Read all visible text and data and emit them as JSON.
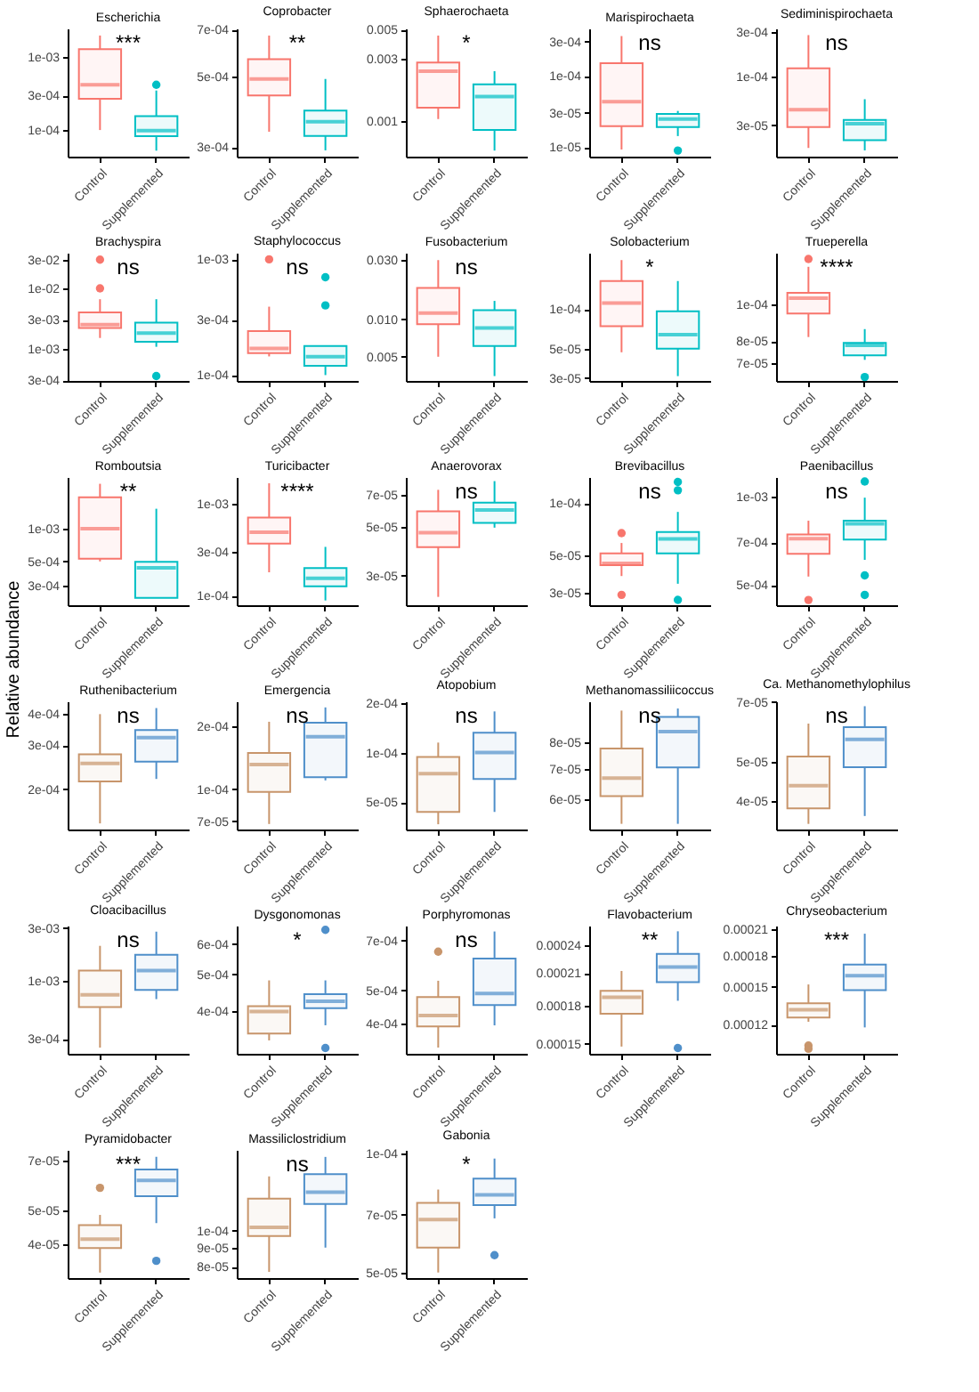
{
  "chart_data": [
    {
      "type": "box",
      "title": "Escherichia",
      "categories": [
        "Control",
        "Supplemented"
      ],
      "colors": [
        "#f8766d",
        "#00bfc4"
      ],
      "log": true,
      "ylim": [
        4.3e-05,
        0.0025
      ],
      "yticks": [
        {
          "value": 0.0001,
          "label": "1e-04"
        },
        {
          "value": 0.0003,
          "label": "3e-04"
        },
        {
          "value": 0.001,
          "label": "1e-03"
        }
      ],
      "annotations": [
        "***"
      ],
      "boxes": [
        {
          "low": 0.0001,
          "q1": 0.00027,
          "median": 0.00042,
          "q3": 0.0013,
          "high": 0.002
        },
        {
          "low": 5.2e-05,
          "q1": 8.2e-05,
          "median": 9.8e-05,
          "q3": 0.000155,
          "high": 0.00035,
          "outliers": [
            0.00042
          ]
        }
      ]
    },
    {
      "type": "box",
      "title": "Coprobacter",
      "categories": [
        "Control",
        "Supplemented"
      ],
      "colors": [
        "#f8766d",
        "#00bfc4"
      ],
      "log": true,
      "ylim": [
        0.00028,
        0.000705
      ],
      "yticks": [
        {
          "value": 0.0003,
          "label": "3e-04"
        },
        {
          "value": 0.0005,
          "label": "5e-04"
        },
        {
          "value": 0.0007,
          "label": "7e-04"
        }
      ],
      "annotations": [
        "**"
      ],
      "boxes": [
        {
          "low": 0.000335,
          "q1": 0.000435,
          "median": 0.00049,
          "q3": 0.000565,
          "high": 0.00067
        },
        {
          "low": 0.000293,
          "q1": 0.000325,
          "median": 0.00036,
          "q3": 0.00039,
          "high": 0.00049
        }
      ]
    },
    {
      "type": "box",
      "title": "Sphaerochaeta",
      "categories": [
        "Control",
        "Supplemented"
      ],
      "colors": [
        "#f8766d",
        "#00bfc4"
      ],
      "log": true,
      "ylim": [
        0.00053,
        0.0051
      ],
      "yticks": [
        0.001,
        0.003,
        0.005
      ],
      "annotations": [
        "*"
      ],
      "boxes": [
        {
          "low": 0.00103,
          "q1": 0.00126,
          "median": 0.0024,
          "q3": 0.0028,
          "high": 0.0045
        },
        {
          "low": 0.00059,
          "q1": 0.00085,
          "median": 0.00153,
          "q3": 0.0019,
          "high": 0.0024
        }
      ]
    },
    {
      "type": "box",
      "title": "Marispirochaeta",
      "categories": [
        "Control",
        "Supplemented"
      ],
      "colors": [
        "#f8766d",
        "#00bfc4"
      ],
      "log": true,
      "ylim": [
        7.3e-06,
        0.00046
      ],
      "yticks": [
        {
          "value": 1e-05,
          "label": "1e-05"
        },
        {
          "value": 3e-05,
          "label": "3e-05"
        },
        {
          "value": 0.0001,
          "label": "1e-04"
        },
        {
          "value": 0.0003,
          "label": "3e-04"
        }
      ],
      "annotations": [
        "ns"
      ],
      "boxes": [
        {
          "low": 9.2e-06,
          "q1": 1.95e-05,
          "median": 4.3e-05,
          "q3": 0.00015,
          "high": 0.00036
        },
        {
          "low": 1.42e-05,
          "q1": 1.9e-05,
          "median": 2.46e-05,
          "q3": 2.9e-05,
          "high": 3.2e-05,
          "outliers": [
            8.9e-06
          ]
        }
      ]
    },
    {
      "type": "box",
      "title": "Sediminispirochaeta",
      "categories": [
        "Control",
        "Supplemented"
      ],
      "colors": [
        "#f8766d",
        "#00bfc4"
      ],
      "log": true,
      "ylim": [
        1.37e-05,
        0.00033
      ],
      "yticks": [
        {
          "value": 3e-05,
          "label": "3e-05"
        },
        {
          "value": 0.0001,
          "label": "1e-04"
        },
        {
          "value": 0.0003,
          "label": "3e-04"
        }
      ],
      "annotations": [
        "ns"
      ],
      "boxes": [
        {
          "low": 1.7e-05,
          "q1": 2.86e-05,
          "median": 4.4e-05,
          "q3": 0.000123,
          "high": 0.00028
        },
        {
          "low": 1.6e-05,
          "q1": 2.06e-05,
          "median": 3.1e-05,
          "q3": 3.4e-05,
          "high": 5.7e-05
        }
      ]
    },
    {
      "type": "box",
      "title": "Brachyspira",
      "categories": [
        "Control",
        "Supplemented"
      ],
      "colors": [
        "#f8766d",
        "#00bfc4"
      ],
      "log": true,
      "ylim": [
        0.00029,
        0.039
      ],
      "yticks": [
        {
          "value": 0.0003,
          "label": "3e-04"
        },
        {
          "value": 0.001,
          "label": "1e-03"
        },
        {
          "value": 0.003,
          "label": "3e-03"
        },
        {
          "value": 0.01,
          "label": "1e-02"
        },
        {
          "value": 0.03,
          "label": "3e-02"
        }
      ],
      "annotations": [
        "ns"
      ],
      "boxes": [
        {
          "low": 0.0015,
          "q1": 0.0022,
          "median": 0.0025,
          "q3": 0.004,
          "high": 0.0066,
          "outliers": [
            0.01,
            0.03
          ]
        },
        {
          "low": 0.00107,
          "q1": 0.0013,
          "median": 0.0018,
          "q3": 0.0027,
          "high": 0.0066,
          "outliers": [
            0.00035
          ]
        }
      ]
    },
    {
      "type": "box",
      "title": "Staphylococcus",
      "categories": [
        "Control",
        "Supplemented"
      ],
      "colors": [
        "#f8766d",
        "#00bfc4"
      ],
      "log": true,
      "ylim": [
        8.9e-05,
        0.00114
      ],
      "yticks": [
        {
          "value": 0.0001,
          "label": "1e-04"
        },
        {
          "value": 0.0003,
          "label": "3e-04"
        },
        {
          "value": 0.001,
          "label": "1e-03"
        }
      ],
      "annotations": [
        "ns"
      ],
      "boxes": [
        {
          "low": 0.000145,
          "q1": 0.000155,
          "median": 0.00017,
          "q3": 0.00024,
          "high": 0.00039,
          "outliers": [
            0.001
          ]
        },
        {
          "low": 0.0001,
          "q1": 0.00012,
          "median": 0.000144,
          "q3": 0.000178,
          "high": 0.00018,
          "outliers": [
            0.0004,
            0.0007
          ]
        }
      ]
    },
    {
      "type": "box",
      "title": "Fusobacterium",
      "categories": [
        "Control",
        "Supplemented"
      ],
      "colors": [
        "#f8766d",
        "#00bfc4"
      ],
      "log": true,
      "ylim": [
        0.0032,
        0.034
      ],
      "yticks": [
        0.005,
        {
          "value": 0.01,
          "label": "0.010"
        },
        {
          "value": 0.03,
          "label": "0.030"
        }
      ],
      "annotations": [
        "ns"
      ],
      "boxes": [
        {
          "low": 0.005,
          "q1": 0.0091,
          "median": 0.0112,
          "q3": 0.0178,
          "high": 0.0297
        },
        {
          "low": 0.0035,
          "q1": 0.0061,
          "median": 0.0085,
          "q3": 0.0118,
          "high": 0.014
        }
      ]
    },
    {
      "type": "box",
      "title": "Solobacterium",
      "categories": [
        "Control",
        "Supplemented"
      ],
      "colors": [
        "#f8766d",
        "#00bfc4"
      ],
      "log": true,
      "ylim": [
        2.85e-05,
        0.000267
      ],
      "yticks": [
        {
          "value": 3e-05,
          "label": "3e-05"
        },
        {
          "value": 5e-05,
          "label": "5e-05"
        },
        {
          "value": 0.0001,
          "label": "1e-04"
        }
      ],
      "annotations": [
        "*"
      ],
      "boxes": [
        {
          "low": 4.7e-05,
          "q1": 7.4e-05,
          "median": 0.000111,
          "q3": 0.000163,
          "high": 0.000235
        },
        {
          "low": 3.1e-05,
          "q1": 5e-05,
          "median": 6.4e-05,
          "q3": 9.6e-05,
          "high": 0.000163
        }
      ]
    },
    {
      "type": "box",
      "title": "Trueperella",
      "categories": [
        "Control",
        "Supplemented"
      ],
      "colors": [
        "#f8766d",
        "#00bfc4"
      ],
      "log": true,
      "ylim": [
        6.3e-05,
        0.000136
      ],
      "yticks": [
        {
          "value": 7e-05,
          "label": "7e-05"
        },
        {
          "value": 8e-05,
          "label": "8e-05"
        },
        {
          "value": 0.0001,
          "label": "1e-04"
        }
      ],
      "annotations": [
        "****"
      ],
      "boxes": [
        {
          "low": 8.2e-05,
          "q1": 9.45e-05,
          "median": 0.0001035,
          "q3": 0.000107,
          "high": 0.000125,
          "outliers": [
            0.000131
          ]
        },
        {
          "low": 7.15e-05,
          "q1": 7.35e-05,
          "median": 7.8e-05,
          "q3": 7.92e-05,
          "high": 8.6e-05,
          "outliers": [
            6.45e-05
          ]
        }
      ]
    },
    {
      "type": "box",
      "title": "Romboutsia",
      "ylabel": "Relative abundance",
      "categories": [
        "Control",
        "Supplemented"
      ],
      "colors": [
        "#f8766d",
        "#00bfc4"
      ],
      "log": true,
      "ylim": [
        0.000197,
        0.003
      ],
      "yticks": [
        {
          "value": 0.0003,
          "label": "3e-04"
        },
        {
          "value": 0.0005,
          "label": "5e-04"
        },
        {
          "value": 0.001,
          "label": "1e-03"
        }
      ],
      "annotations": [
        "**"
      ],
      "boxes": [
        {
          "low": 0.0005,
          "q1": 0.00053,
          "median": 0.001,
          "q3": 0.00195,
          "high": 0.0026
        },
        {
          "low": 0.00023,
          "q1": 0.00023,
          "median": 0.000435,
          "q3": 0.000495,
          "high": 0.00153
        }
      ]
    },
    {
      "type": "box",
      "title": "Turicibacter",
      "categories": [
        "Control",
        "Supplemented"
      ],
      "colors": [
        "#f8766d",
        "#00bfc4"
      ],
      "log": true,
      "ylim": [
        7.9e-05,
        0.00195
      ],
      "yticks": [
        {
          "value": 0.0001,
          "label": "1e-04"
        },
        {
          "value": 0.0003,
          "label": "3e-04"
        },
        {
          "value": 0.001,
          "label": "1e-03"
        }
      ],
      "annotations": [
        "****"
      ],
      "boxes": [
        {
          "low": 0.00018,
          "q1": 0.00037,
          "median": 0.00049,
          "q3": 0.00071,
          "high": 0.00167
        },
        {
          "low": 8.9e-05,
          "q1": 0.000127,
          "median": 0.000155,
          "q3": 0.0002,
          "high": 0.00034
        }
      ]
    },
    {
      "type": "box",
      "title": "Anaerovorax",
      "categories": [
        "Control",
        "Supplemented"
      ],
      "colors": [
        "#f8766d",
        "#00bfc4"
      ],
      "log": true,
      "ylim": [
        2.2e-05,
        8.4e-05
      ],
      "yticks": [
        {
          "value": 3e-05,
          "label": "3e-05"
        },
        {
          "value": 5e-05,
          "label": "5e-05"
        },
        {
          "value": 7e-05,
          "label": "7e-05"
        }
      ],
      "annotations": [
        "ns"
      ],
      "boxes": [
        {
          "low": 2.4e-05,
          "q1": 4.04e-05,
          "median": 4.7e-05,
          "q3": 5.87e-05,
          "high": 7.35e-05
        },
        {
          "low": 4.95e-05,
          "q1": 5.2e-05,
          "median": 5.96e-05,
          "q3": 6.43e-05,
          "high": 8.05e-05
        }
      ]
    },
    {
      "type": "box",
      "title": "Brevibacillus",
      "categories": [
        "Control",
        "Supplemented"
      ],
      "colors": [
        "#f8766d",
        "#00bfc4"
      ],
      "log": true,
      "ylim": [
        2.55e-05,
        0.000142
      ],
      "yticks": [
        {
          "value": 3e-05,
          "label": "3e-05"
        },
        {
          "value": 5e-05,
          "label": "5e-05"
        },
        {
          "value": 0.0001,
          "label": "1e-04"
        }
      ],
      "annotations": [
        "ns"
      ],
      "boxes": [
        {
          "low": 3.77e-05,
          "q1": 4.36e-05,
          "median": 4.46e-05,
          "q3": 5.1e-05,
          "high": 5.87e-05,
          "outliers": [
            6.7e-05,
            2.93e-05
          ]
        },
        {
          "low": 3.4e-05,
          "q1": 5.1e-05,
          "median": 6.2e-05,
          "q3": 6.8e-05,
          "high": 8.9e-05,
          "outliers": [
            0.000119,
            0.000133,
            2.74e-05
          ]
        }
      ]
    },
    {
      "type": "box",
      "title": "Paenibacillus",
      "categories": [
        "Control",
        "Supplemented"
      ],
      "colors": [
        "#f8766d",
        "#00bfc4"
      ],
      "log": true,
      "ylim": [
        0.000427,
        0.00117
      ],
      "yticks": [
        {
          "value": 0.0005,
          "label": "5e-04"
        },
        {
          "value": 0.0007,
          "label": "7e-04"
        },
        {
          "value": 0.001,
          "label": "1e-03"
        }
      ],
      "annotations": [
        "ns"
      ],
      "boxes": [
        {
          "low": 0.000535,
          "q1": 0.00064,
          "median": 0.00072,
          "q3": 0.000745,
          "high": 0.00083,
          "outliers": [
            0.000445
          ]
        },
        {
          "low": 0.00061,
          "q1": 0.000715,
          "median": 0.00081,
          "q3": 0.00083,
          "high": 0.000995,
          "outliers": [
            0.00113,
            0.00054,
            0.000463
          ]
        }
      ]
    },
    {
      "type": "box",
      "title": "Ruthenibacterium",
      "categories": [
        "Control",
        "Supplemented"
      ],
      "colors": [
        "#c8956b",
        "#4f8fca"
      ],
      "log": true,
      "ylim": [
        0.000138,
        0.00045
      ],
      "yticks": [
        {
          "value": 0.0002,
          "label": "2e-04"
        },
        {
          "value": 0.0003,
          "label": "3e-04"
        },
        {
          "value": 0.0004,
          "label": "4e-04"
        }
      ],
      "annotations": [
        "ns"
      ],
      "boxes": [
        {
          "low": 0.000146,
          "q1": 0.000215,
          "median": 0.000254,
          "q3": 0.000276,
          "high": 0.0004
        },
        {
          "low": 0.00022,
          "q1": 0.000258,
          "median": 0.000322,
          "q3": 0.000345,
          "high": 0.000423
        }
      ]
    },
    {
      "type": "box",
      "title": "Emergencia",
      "categories": [
        "Control",
        "Supplemented"
      ],
      "colors": [
        "#c8956b",
        "#4f8fca"
      ],
      "log": true,
      "ylim": [
        6.4e-05,
        0.000263
      ],
      "yticks": [
        {
          "value": 7e-05,
          "label": "7e-05"
        },
        {
          "value": 0.0001,
          "label": "1e-04"
        },
        {
          "value": 0.0002,
          "label": "2e-04"
        }
      ],
      "annotations": [
        "ns"
      ],
      "boxes": [
        {
          "low": 6.8e-05,
          "q1": 9.7e-05,
          "median": 0.000131,
          "q3": 0.000149,
          "high": 0.00021
        },
        {
          "low": 0.00011,
          "q1": 0.000114,
          "median": 0.000178,
          "q3": 0.000208,
          "high": 0.000246
        }
      ]
    },
    {
      "type": "box",
      "title": "Atopobium",
      "categories": [
        "Control",
        "Supplemented"
      ],
      "colors": [
        "#c8956b",
        "#4f8fca"
      ],
      "log": true,
      "ylim": [
        3.4e-05,
        0.000205
      ],
      "yticks": [
        {
          "value": 5e-05,
          "label": "5e-05"
        },
        {
          "value": 0.0001,
          "label": "1e-04"
        },
        {
          "value": 0.0002,
          "label": "2e-04"
        }
      ],
      "annotations": [
        "ns"
      ],
      "boxes": [
        {
          "low": 3.66e-05,
          "q1": 4.35e-05,
          "median": 7.45e-05,
          "q3": 9.4e-05,
          "high": 0.000115
        },
        {
          "low": 4.35e-05,
          "q1": 6.9e-05,
          "median": 0.0001,
          "q3": 0.000132,
          "high": 0.000178
        }
      ]
    },
    {
      "type": "box",
      "title": "Methanomassiliicoccus",
      "categories": [
        "Control",
        "Supplemented"
      ],
      "colors": [
        "#c8956b",
        "#4f8fca"
      ],
      "log": true,
      "ylim": [
        5.15e-05,
        9.85e-05
      ],
      "yticks": [
        {
          "value": 6e-05,
          "label": "6e-05"
        },
        {
          "value": 7e-05,
          "label": "7e-05"
        },
        {
          "value": 8e-05,
          "label": "8e-05"
        }
      ],
      "annotations": [
        "ns"
      ],
      "boxes": [
        {
          "low": 5.3e-05,
          "q1": 6.1e-05,
          "median": 6.68e-05,
          "q3": 7.76e-05,
          "high": 9.4e-05
        },
        {
          "low": 5.3e-05,
          "q1": 7.05e-05,
          "median": 8.45e-05,
          "q3": 9.1e-05,
          "high": 9.5e-05
        }
      ]
    },
    {
      "type": "box",
      "title": "Ca. Methanomethylophilus",
      "categories": [
        "Control",
        "Supplemented"
      ],
      "colors": [
        "#c8956b",
        "#4f8fca"
      ],
      "log": true,
      "ylim": [
        3.41e-05,
        7.03e-05
      ],
      "yticks": [
        {
          "value": 4e-05,
          "label": "4e-05"
        },
        {
          "value": 5e-05,
          "label": "5e-05"
        },
        {
          "value": 7e-05,
          "label": "7e-05"
        }
      ],
      "annotations": [
        "ns"
      ],
      "boxes": [
        {
          "low": 3.52e-05,
          "q1": 3.84e-05,
          "median": 4.37e-05,
          "q3": 5.15e-05,
          "high": 6.2e-05
        },
        {
          "low": 3.68e-05,
          "q1": 4.85e-05,
          "median": 5.67e-05,
          "q3": 6.08e-05,
          "high": 6.84e-05
        }
      ]
    },
    {
      "type": "box",
      "title": "Cloacibacillus",
      "categories": [
        "Control",
        "Supplemented"
      ],
      "colors": [
        "#c8956b",
        "#4f8fca"
      ],
      "log": true,
      "ylim": [
        0.00022,
        0.00315
      ],
      "yticks": [
        {
          "value": 0.0003,
          "label": "3e-04"
        },
        {
          "value": 0.001,
          "label": "1e-03"
        },
        {
          "value": 0.003,
          "label": "3e-03"
        }
      ],
      "annotations": [
        "ns"
      ],
      "boxes": [
        {
          "low": 0.00025,
          "q1": 0.00058,
          "median": 0.00075,
          "q3": 0.00124,
          "high": 0.00207
        },
        {
          "low": 0.000685,
          "q1": 0.00083,
          "median": 0.00124,
          "q3": 0.00172,
          "high": 0.00278
        }
      ]
    },
    {
      "type": "box",
      "title": "Dysgonomonas",
      "categories": [
        "Control",
        "Supplemented"
      ],
      "colors": [
        "#c8956b",
        "#4f8fca"
      ],
      "log": true,
      "ylim": [
        0.00031,
        0.00067
      ],
      "yticks": [
        {
          "value": 0.0004,
          "label": "4e-04"
        },
        {
          "value": 0.0005,
          "label": "5e-04"
        },
        {
          "value": 0.0006,
          "label": "6e-04"
        }
      ],
      "annotations": [
        "*"
      ],
      "boxes": [
        {
          "low": 0.000336,
          "q1": 0.00035,
          "median": 0.0004,
          "q3": 0.000413,
          "high": 0.000482
        },
        {
          "low": 0.000368,
          "q1": 0.000408,
          "median": 0.000425,
          "q3": 0.000444,
          "high": 0.000482,
          "outliers": [
            0.000653,
            0.000321
          ]
        }
      ]
    },
    {
      "type": "box",
      "title": "Porphyromonas",
      "categories": [
        "Control",
        "Supplemented"
      ],
      "colors": [
        "#c8956b",
        "#4f8fca"
      ],
      "log": true,
      "ylim": [
        0.000326,
        0.000775
      ],
      "yticks": [
        {
          "value": 0.0004,
          "label": "4e-04"
        },
        {
          "value": 0.0005,
          "label": "5e-04"
        },
        {
          "value": 0.0007,
          "label": "7e-04"
        }
      ],
      "annotations": [
        "ns"
      ],
      "boxes": [
        {
          "low": 0.00034,
          "q1": 0.000392,
          "median": 0.000422,
          "q3": 0.000478,
          "high": 0.000534,
          "outliers": [
            0.00065
          ]
        },
        {
          "low": 0.000395,
          "q1": 0.000453,
          "median": 0.00049,
          "q3": 0.00062,
          "high": 0.000745
        }
      ]
    },
    {
      "type": "box",
      "title": "Flavobacterium",
      "categories": [
        "Control",
        "Supplemented"
      ],
      "colors": [
        "#c8956b",
        "#4f8fca"
      ],
      "log": true,
      "ylim": [
        0.000143,
        0.000263
      ],
      "yticks": [
        0.00015,
        0.00018,
        0.00021,
        0.00024
      ],
      "annotations": [
        "**"
      ],
      "boxes": [
        {
          "low": 0.000148,
          "q1": 0.000173,
          "median": 0.000187,
          "q3": 0.000193,
          "high": 0.000212
        },
        {
          "low": 0.000184,
          "q1": 0.000201,
          "median": 0.000216,
          "q3": 0.00023,
          "high": 0.000256,
          "outliers": [
            0.000147
          ]
        }
      ]
    },
    {
      "type": "box",
      "title": "Chryseobacterium",
      "categories": [
        "Control",
        "Supplemented"
      ],
      "colors": [
        "#c8956b",
        "#4f8fca"
      ],
      "log": true,
      "ylim": [
        0.000101,
        0.000215
      ],
      "yticks": [
        0.00012,
        0.00015,
        0.00018,
        0.00021
      ],
      "annotations": [
        "***"
      ],
      "boxes": [
        {
          "low": 0.000122,
          "q1": 0.000125,
          "median": 0.000131,
          "q3": 0.000136,
          "high": 0.000152,
          "outliers": [
            0.000106,
            0.000104
          ]
        },
        {
          "low": 0.000118,
          "q1": 0.000147,
          "median": 0.00016,
          "q3": 0.000171,
          "high": 0.000205
        }
      ]
    },
    {
      "type": "box",
      "title": "Pyramidobacter",
      "categories": [
        "Control",
        "Supplemented"
      ],
      "colors": [
        "#c8956b",
        "#4f8fca"
      ],
      "log": true,
      "ylim": [
        3.18e-05,
        7.52e-05
      ],
      "yticks": [
        {
          "value": 4e-05,
          "label": "4e-05"
        },
        {
          "value": 5e-05,
          "label": "5e-05"
        },
        {
          "value": 7e-05,
          "label": "7e-05"
        }
      ],
      "annotations": [
        "***"
      ],
      "boxes": [
        {
          "low": 3.3e-05,
          "q1": 3.89e-05,
          "median": 4.13e-05,
          "q3": 4.54e-05,
          "high": 4.86e-05,
          "outliers": [
            5.83e-05
          ]
        },
        {
          "low": 4.6e-05,
          "q1": 5.51e-05,
          "median": 6.13e-05,
          "q3": 6.59e-05,
          "high": 7.18e-05,
          "outliers": [
            3.57e-05
          ]
        }
      ]
    },
    {
      "type": "box",
      "title": "Massiliclostridium",
      "categories": [
        "Control",
        "Supplemented"
      ],
      "colors": [
        "#c8956b",
        "#4f8fca"
      ],
      "log": true,
      "ylim": [
        7.45e-05,
        0.000165
      ],
      "yticks": [
        {
          "value": 8e-05,
          "label": "8e-05"
        },
        {
          "value": 9e-05,
          "label": "9e-05"
        },
        {
          "value": 0.0001,
          "label": "1e-04"
        }
      ],
      "annotations": [
        "ns"
      ],
      "boxes": [
        {
          "low": 7.74e-05,
          "q1": 9.67e-05,
          "median": 0.000102,
          "q3": 0.000122,
          "high": 0.00014
        },
        {
          "low": 9e-05,
          "q1": 0.000118,
          "median": 0.000127,
          "q3": 0.000142,
          "high": 0.000158
        }
      ]
    },
    {
      "type": "box",
      "title": "Gabonia",
      "categories": [
        "Control",
        "Supplemented"
      ],
      "colors": [
        "#c8956b",
        "#4f8fca"
      ],
      "log": true,
      "ylim": [
        4.84e-05,
        0.000102
      ],
      "yticks": [
        {
          "value": 5e-05,
          "label": "5e-05"
        },
        {
          "value": 7e-05,
          "label": "7e-05"
        },
        {
          "value": 0.0001,
          "label": "1e-04"
        }
      ],
      "annotations": [
        "*"
      ],
      "boxes": [
        {
          "low": 5e-05,
          "q1": 5.78e-05,
          "median": 6.8e-05,
          "q3": 7.5e-05,
          "high": 8.1e-05
        },
        {
          "low": 6.85e-05,
          "q1": 7.4e-05,
          "median": 7.85e-05,
          "q3": 8.63e-05,
          "high": 9.7e-05,
          "outliers": [
            5.53e-05
          ]
        }
      ]
    }
  ]
}
